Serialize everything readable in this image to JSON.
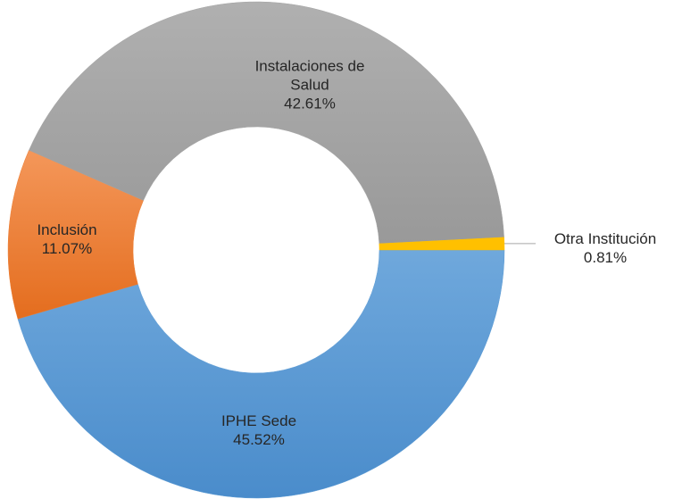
{
  "chart_data": {
    "type": "donut",
    "categories": [
      "IPHE Sede",
      "Inclusión",
      "Instalaciones de Salud",
      "Otra Institución"
    ],
    "values": [
      45.52,
      11.07,
      42.61,
      0.81
    ],
    "value_labels": [
      "45.52%",
      "11.07%",
      "42.61%",
      "0.81%"
    ],
    "colors": [
      "#5b9bd5",
      "#ed7d31",
      "#a5a5a5",
      "#ffc000"
    ]
  }
}
